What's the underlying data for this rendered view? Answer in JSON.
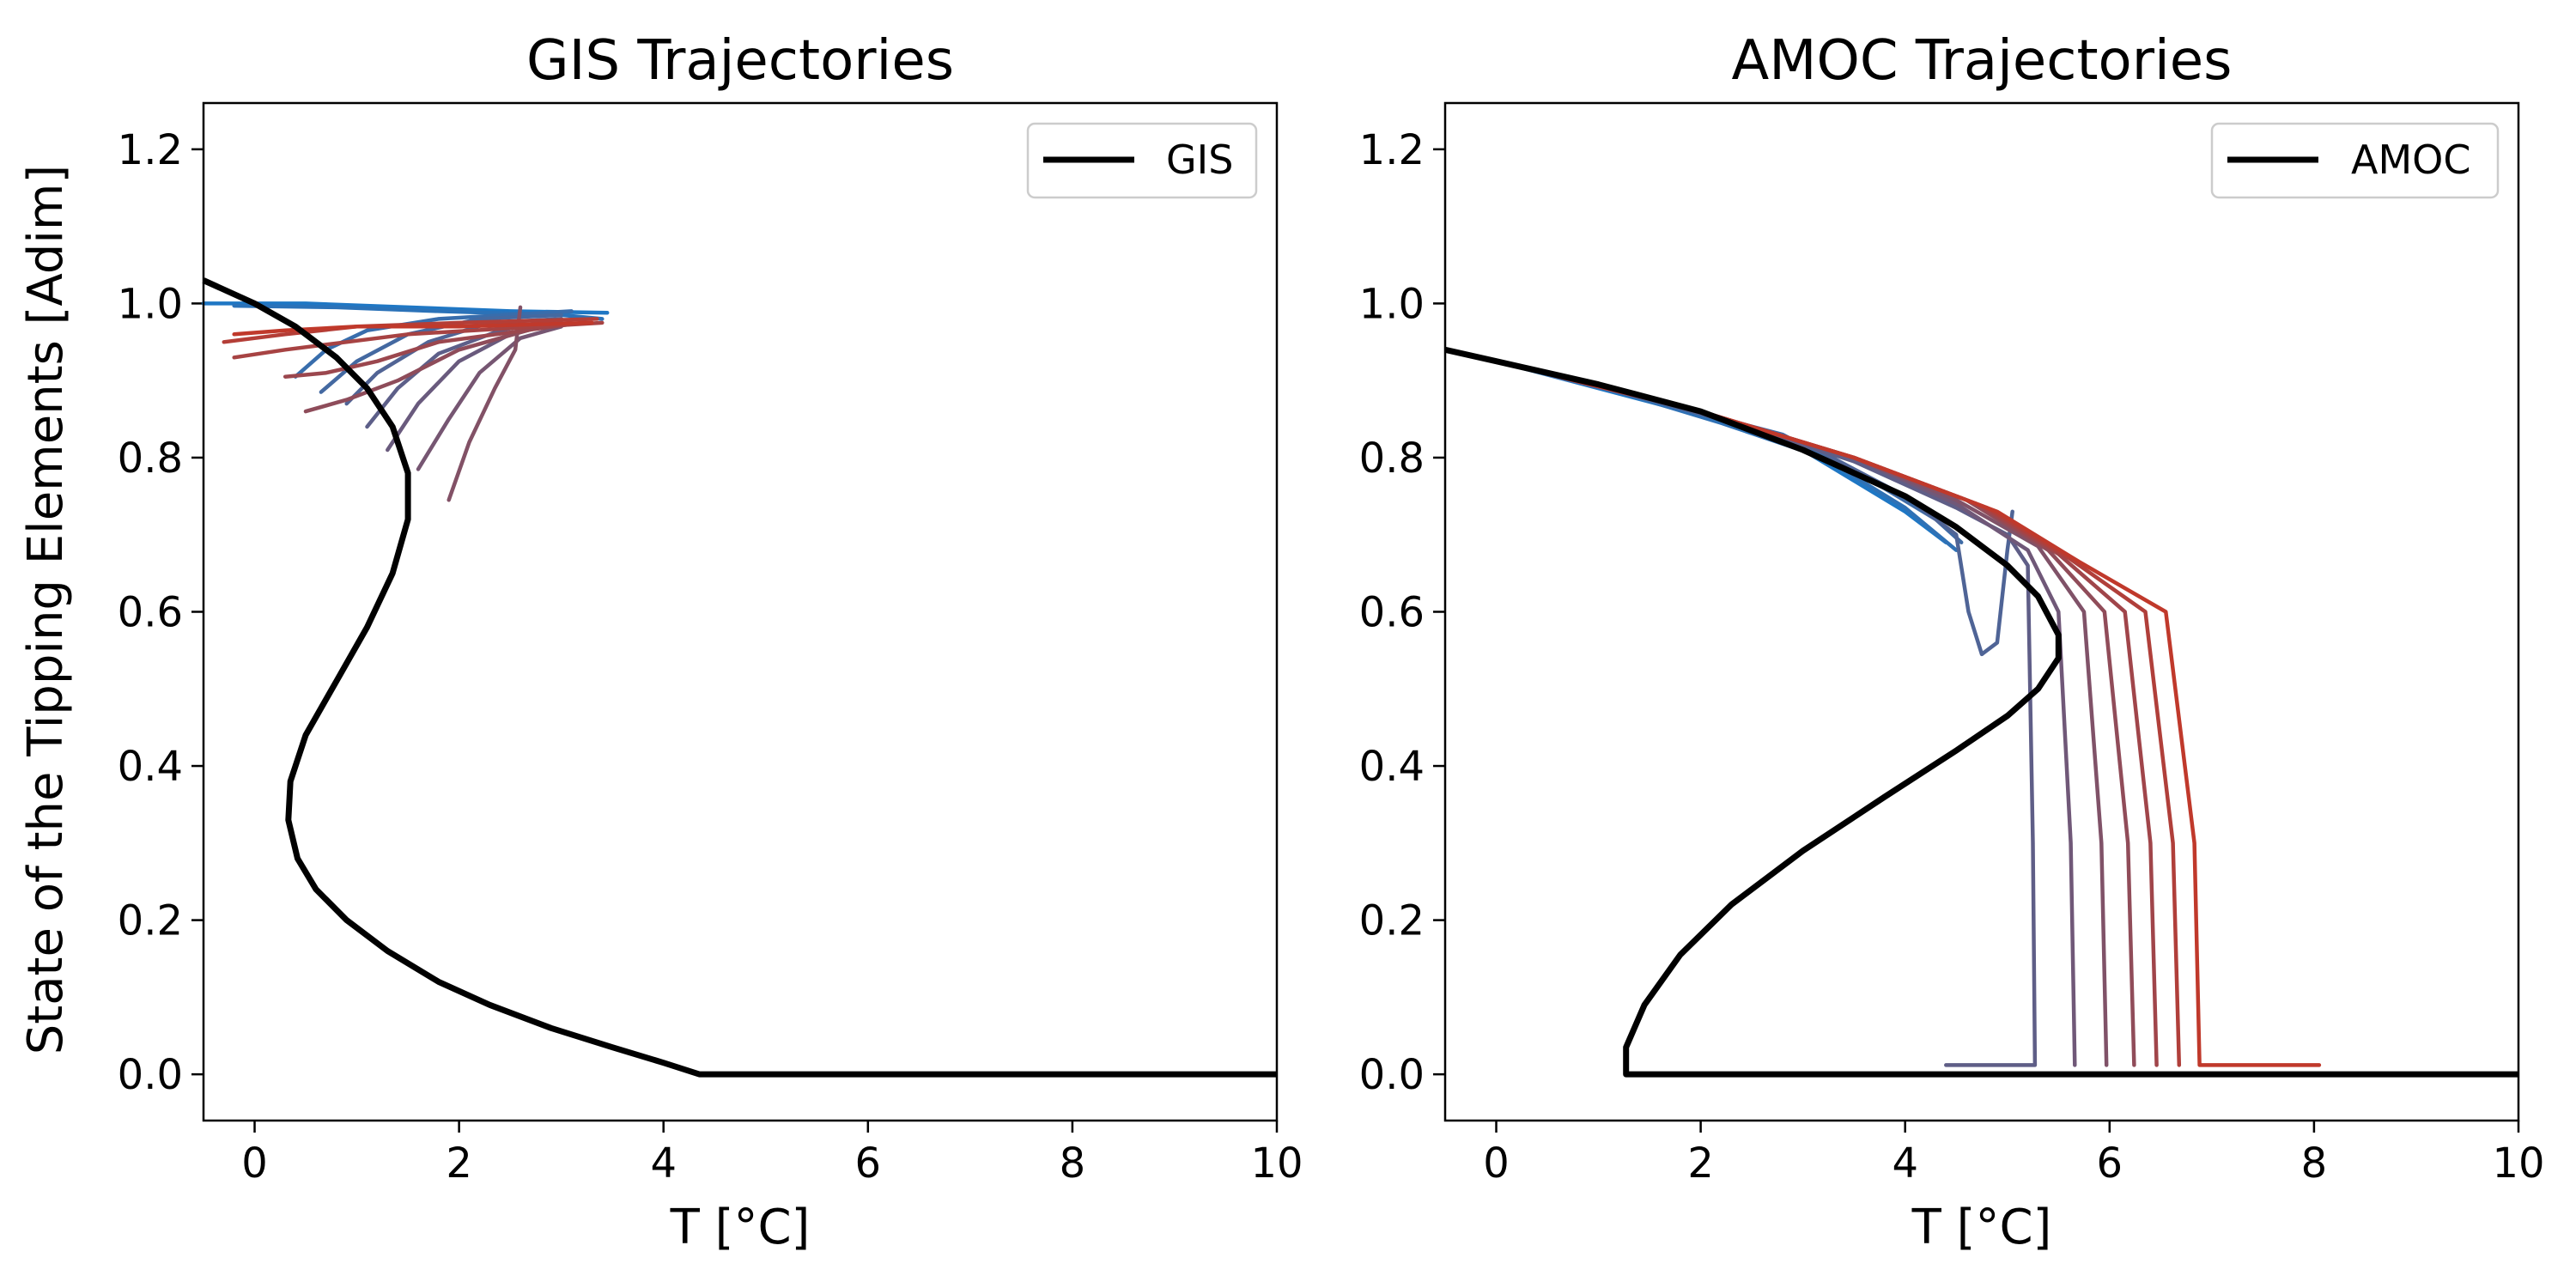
{
  "chart_data": [
    {
      "type": "line",
      "title": "GIS Trajectories",
      "xlabel": "T [°C]",
      "ylabel": "State of the Tipping Elements [Adim]",
      "xlim": [
        -0.5,
        10
      ],
      "ylim": [
        -0.06,
        1.26
      ],
      "xticks": [
        "0",
        "2",
        "4",
        "6",
        "8",
        "10"
      ],
      "yticks": [
        "0.0",
        "0.2",
        "0.4",
        "0.6",
        "0.8",
        "1.0",
        "1.2"
      ],
      "grid": false,
      "legend": {
        "location": "top-right",
        "entries": [
          "GIS"
        ]
      },
      "colors": {
        "equilibrium": "#000000",
        "trajectory_start": "#1f77c4",
        "trajectory_end": "#c0392b"
      },
      "series": [
        {
          "name": "GIS",
          "points": [
            [
              -0.5,
              1.03
            ],
            [
              0.0,
              1.0
            ],
            [
              0.4,
              0.97
            ],
            [
              0.8,
              0.93
            ],
            [
              1.1,
              0.89
            ],
            [
              1.35,
              0.84
            ],
            [
              1.5,
              0.78
            ],
            [
              1.5,
              0.72
            ],
            [
              1.35,
              0.65
            ],
            [
              1.1,
              0.58
            ],
            [
              0.8,
              0.51
            ],
            [
              0.5,
              0.44
            ],
            [
              0.35,
              0.38
            ],
            [
              0.33,
              0.33
            ],
            [
              0.42,
              0.28
            ],
            [
              0.6,
              0.24
            ],
            [
              0.9,
              0.2
            ],
            [
              1.3,
              0.16
            ],
            [
              1.8,
              0.12
            ],
            [
              2.3,
              0.09
            ],
            [
              2.9,
              0.06
            ],
            [
              3.5,
              0.035
            ],
            [
              4.0,
              0.015
            ],
            [
              4.35,
              0.0
            ],
            [
              6.0,
              0.0
            ],
            [
              8.0,
              0.0
            ],
            [
              10.0,
              0.0
            ]
          ]
        }
      ],
      "trajectories": [
        {
          "points": [
            [
              -0.5,
              1.0
            ],
            [
              0.5,
              1.0
            ],
            [
              1.5,
              0.995
            ],
            [
              2.5,
              0.99
            ],
            [
              3.45,
              0.988
            ]
          ]
        },
        {
          "points": [
            [
              -0.2,
              0.997
            ],
            [
              0.8,
              0.995
            ],
            [
              1.8,
              0.99
            ],
            [
              3.0,
              0.985
            ],
            [
              3.4,
              0.98
            ]
          ]
        },
        {
          "points": [
            [
              0.4,
              0.905
            ],
            [
              0.7,
              0.94
            ],
            [
              1.1,
              0.965
            ],
            [
              1.8,
              0.98
            ],
            [
              3.1,
              0.99
            ]
          ]
        },
        {
          "points": [
            [
              0.65,
              0.885
            ],
            [
              1.0,
              0.925
            ],
            [
              1.5,
              0.96
            ],
            [
              2.2,
              0.98
            ],
            [
              3.0,
              0.985
            ]
          ]
        },
        {
          "points": [
            [
              0.9,
              0.87
            ],
            [
              1.2,
              0.91
            ],
            [
              1.7,
              0.95
            ],
            [
              2.3,
              0.975
            ],
            [
              3.0,
              0.98
            ]
          ]
        },
        {
          "points": [
            [
              1.1,
              0.84
            ],
            [
              1.4,
              0.89
            ],
            [
              1.8,
              0.935
            ],
            [
              2.4,
              0.965
            ],
            [
              3.0,
              0.98
            ]
          ]
        },
        {
          "points": [
            [
              1.3,
              0.81
            ],
            [
              1.6,
              0.87
            ],
            [
              2.0,
              0.925
            ],
            [
              2.5,
              0.96
            ],
            [
              3.0,
              0.975
            ]
          ]
        },
        {
          "points": [
            [
              1.6,
              0.785
            ],
            [
              1.9,
              0.85
            ],
            [
              2.2,
              0.91
            ],
            [
              2.6,
              0.955
            ],
            [
              3.0,
              0.97
            ]
          ]
        },
        {
          "points": [
            [
              1.9,
              0.745
            ],
            [
              2.1,
              0.82
            ],
            [
              2.35,
              0.89
            ],
            [
              2.55,
              0.94
            ],
            [
              2.6,
              0.995
            ]
          ]
        },
        {
          "points": [
            [
              0.5,
              0.86
            ],
            [
              0.9,
              0.875
            ],
            [
              1.4,
              0.9
            ],
            [
              2.0,
              0.94
            ],
            [
              2.8,
              0.97
            ]
          ]
        },
        {
          "points": [
            [
              0.3,
              0.905
            ],
            [
              0.7,
              0.91
            ],
            [
              1.2,
              0.925
            ],
            [
              1.8,
              0.95
            ],
            [
              3.2,
              0.975
            ]
          ]
        },
        {
          "points": [
            [
              -0.2,
              0.93
            ],
            [
              0.3,
              0.94
            ],
            [
              0.9,
              0.95
            ],
            [
              1.5,
              0.96
            ],
            [
              3.4,
              0.975
            ]
          ]
        },
        {
          "points": [
            [
              -0.3,
              0.95
            ],
            [
              0.3,
              0.96
            ],
            [
              1.0,
              0.97
            ],
            [
              2.0,
              0.975
            ],
            [
              3.35,
              0.98
            ]
          ]
        },
        {
          "points": [
            [
              -0.2,
              0.96
            ],
            [
              0.3,
              0.965
            ],
            [
              1.0,
              0.97
            ],
            [
              2.0,
              0.97
            ],
            [
              3.3,
              0.975
            ]
          ]
        }
      ]
    },
    {
      "type": "line",
      "title": "AMOC Trajectories",
      "xlabel": "T [°C]",
      "ylabel": "",
      "xlim": [
        -0.5,
        10
      ],
      "ylim": [
        -0.06,
        1.26
      ],
      "xticks": [
        "0",
        "2",
        "4",
        "6",
        "8",
        "10"
      ],
      "yticks": [
        "0.0",
        "0.2",
        "0.4",
        "0.6",
        "0.8",
        "1.0",
        "1.2"
      ],
      "grid": false,
      "legend": {
        "location": "top-right",
        "entries": [
          "AMOC"
        ]
      },
      "colors": {
        "equilibrium": "#000000",
        "trajectory_start": "#1f77c4",
        "trajectory_end": "#c0392b"
      },
      "series": [
        {
          "name": "AMOC",
          "points": [
            [
              -0.5,
              0.94
            ],
            [
              0.0,
              0.925
            ],
            [
              1.0,
              0.895
            ],
            [
              2.0,
              0.86
            ],
            [
              3.0,
              0.81
            ],
            [
              4.0,
              0.75
            ],
            [
              4.5,
              0.71
            ],
            [
              5.0,
              0.66
            ],
            [
              5.3,
              0.62
            ],
            [
              5.5,
              0.57
            ],
            [
              5.5,
              0.54
            ],
            [
              5.3,
              0.5
            ],
            [
              5.0,
              0.465
            ],
            [
              4.5,
              0.42
            ],
            [
              3.8,
              0.36
            ],
            [
              3.0,
              0.29
            ],
            [
              2.3,
              0.22
            ],
            [
              1.8,
              0.155
            ],
            [
              1.45,
              0.09
            ],
            [
              1.27,
              0.035
            ],
            [
              1.27,
              0.0
            ],
            [
              4.0,
              0.0
            ],
            [
              7.0,
              0.0
            ],
            [
              10.0,
              0.0
            ]
          ]
        }
      ],
      "trajectories": [
        {
          "points": [
            [
              0.0,
              0.925
            ],
            [
              1.0,
              0.89
            ],
            [
              2.0,
              0.855
            ],
            [
              3.0,
              0.81
            ],
            [
              4.0,
              0.73
            ],
            [
              4.4,
              0.69
            ]
          ]
        },
        {
          "points": [
            [
              0.0,
              0.925
            ],
            [
              1.2,
              0.885
            ],
            [
              2.2,
              0.845
            ],
            [
              3.2,
              0.8
            ],
            [
              4.0,
              0.735
            ],
            [
              4.5,
              0.68
            ]
          ]
        },
        {
          "points": [
            [
              0.0,
              0.925
            ],
            [
              1.5,
              0.875
            ],
            [
              2.8,
              0.83
            ],
            [
              3.8,
              0.76
            ],
            [
              4.3,
              0.72
            ],
            [
              4.55,
              0.69
            ]
          ]
        },
        {
          "points": [
            [
              0.0,
              0.925
            ],
            [
              1.5,
              0.875
            ],
            [
              3.0,
              0.82
            ],
            [
              4.0,
              0.75
            ],
            [
              4.5,
              0.7
            ],
            [
              4.62,
              0.6
            ],
            [
              4.75,
              0.545
            ],
            [
              4.9,
              0.56
            ],
            [
              5.0,
              0.68
            ],
            [
              5.05,
              0.73
            ]
          ]
        },
        {
          "points": [
            [
              0.0,
              0.925
            ],
            [
              2.0,
              0.86
            ],
            [
              3.5,
              0.795
            ],
            [
              4.5,
              0.735
            ],
            [
              5.0,
              0.7
            ],
            [
              5.2,
              0.66
            ],
            [
              5.25,
              0.3
            ],
            [
              5.27,
              0.012
            ],
            [
              4.4,
              0.012
            ]
          ]
        },
        {
          "points": [
            [
              0.0,
              0.925
            ],
            [
              2.0,
              0.86
            ],
            [
              3.5,
              0.8
            ],
            [
              4.5,
              0.74
            ],
            [
              5.2,
              0.68
            ],
            [
              5.5,
              0.6
            ],
            [
              5.62,
              0.3
            ],
            [
              5.66,
              0.012
            ]
          ]
        },
        {
          "points": [
            [
              0.0,
              0.925
            ],
            [
              2.0,
              0.86
            ],
            [
              3.5,
              0.8
            ],
            [
              4.5,
              0.745
            ],
            [
              5.3,
              0.685
            ],
            [
              5.75,
              0.6
            ],
            [
              5.92,
              0.3
            ],
            [
              5.97,
              0.012
            ]
          ]
        },
        {
          "points": [
            [
              0.0,
              0.925
            ],
            [
              2.0,
              0.86
            ],
            [
              3.5,
              0.8
            ],
            [
              4.6,
              0.745
            ],
            [
              5.4,
              0.68
            ],
            [
              5.95,
              0.6
            ],
            [
              6.18,
              0.3
            ],
            [
              6.24,
              0.012
            ]
          ]
        },
        {
          "points": [
            [
              0.0,
              0.925
            ],
            [
              2.0,
              0.86
            ],
            [
              3.5,
              0.8
            ],
            [
              4.7,
              0.74
            ],
            [
              5.5,
              0.675
            ],
            [
              6.15,
              0.6
            ],
            [
              6.4,
              0.3
            ],
            [
              6.46,
              0.012
            ]
          ]
        },
        {
          "points": [
            [
              0.0,
              0.925
            ],
            [
              2.0,
              0.86
            ],
            [
              3.5,
              0.8
            ],
            [
              4.8,
              0.735
            ],
            [
              5.6,
              0.67
            ],
            [
              6.35,
              0.6
            ],
            [
              6.62,
              0.3
            ],
            [
              6.68,
              0.012
            ]
          ]
        },
        {
          "points": [
            [
              0.0,
              0.925
            ],
            [
              2.0,
              0.86
            ],
            [
              3.5,
              0.8
            ],
            [
              4.9,
              0.73
            ],
            [
              5.7,
              0.665
            ],
            [
              6.55,
              0.6
            ],
            [
              6.83,
              0.3
            ],
            [
              6.88,
              0.012
            ],
            [
              8.05,
              0.012
            ]
          ]
        }
      ]
    }
  ]
}
